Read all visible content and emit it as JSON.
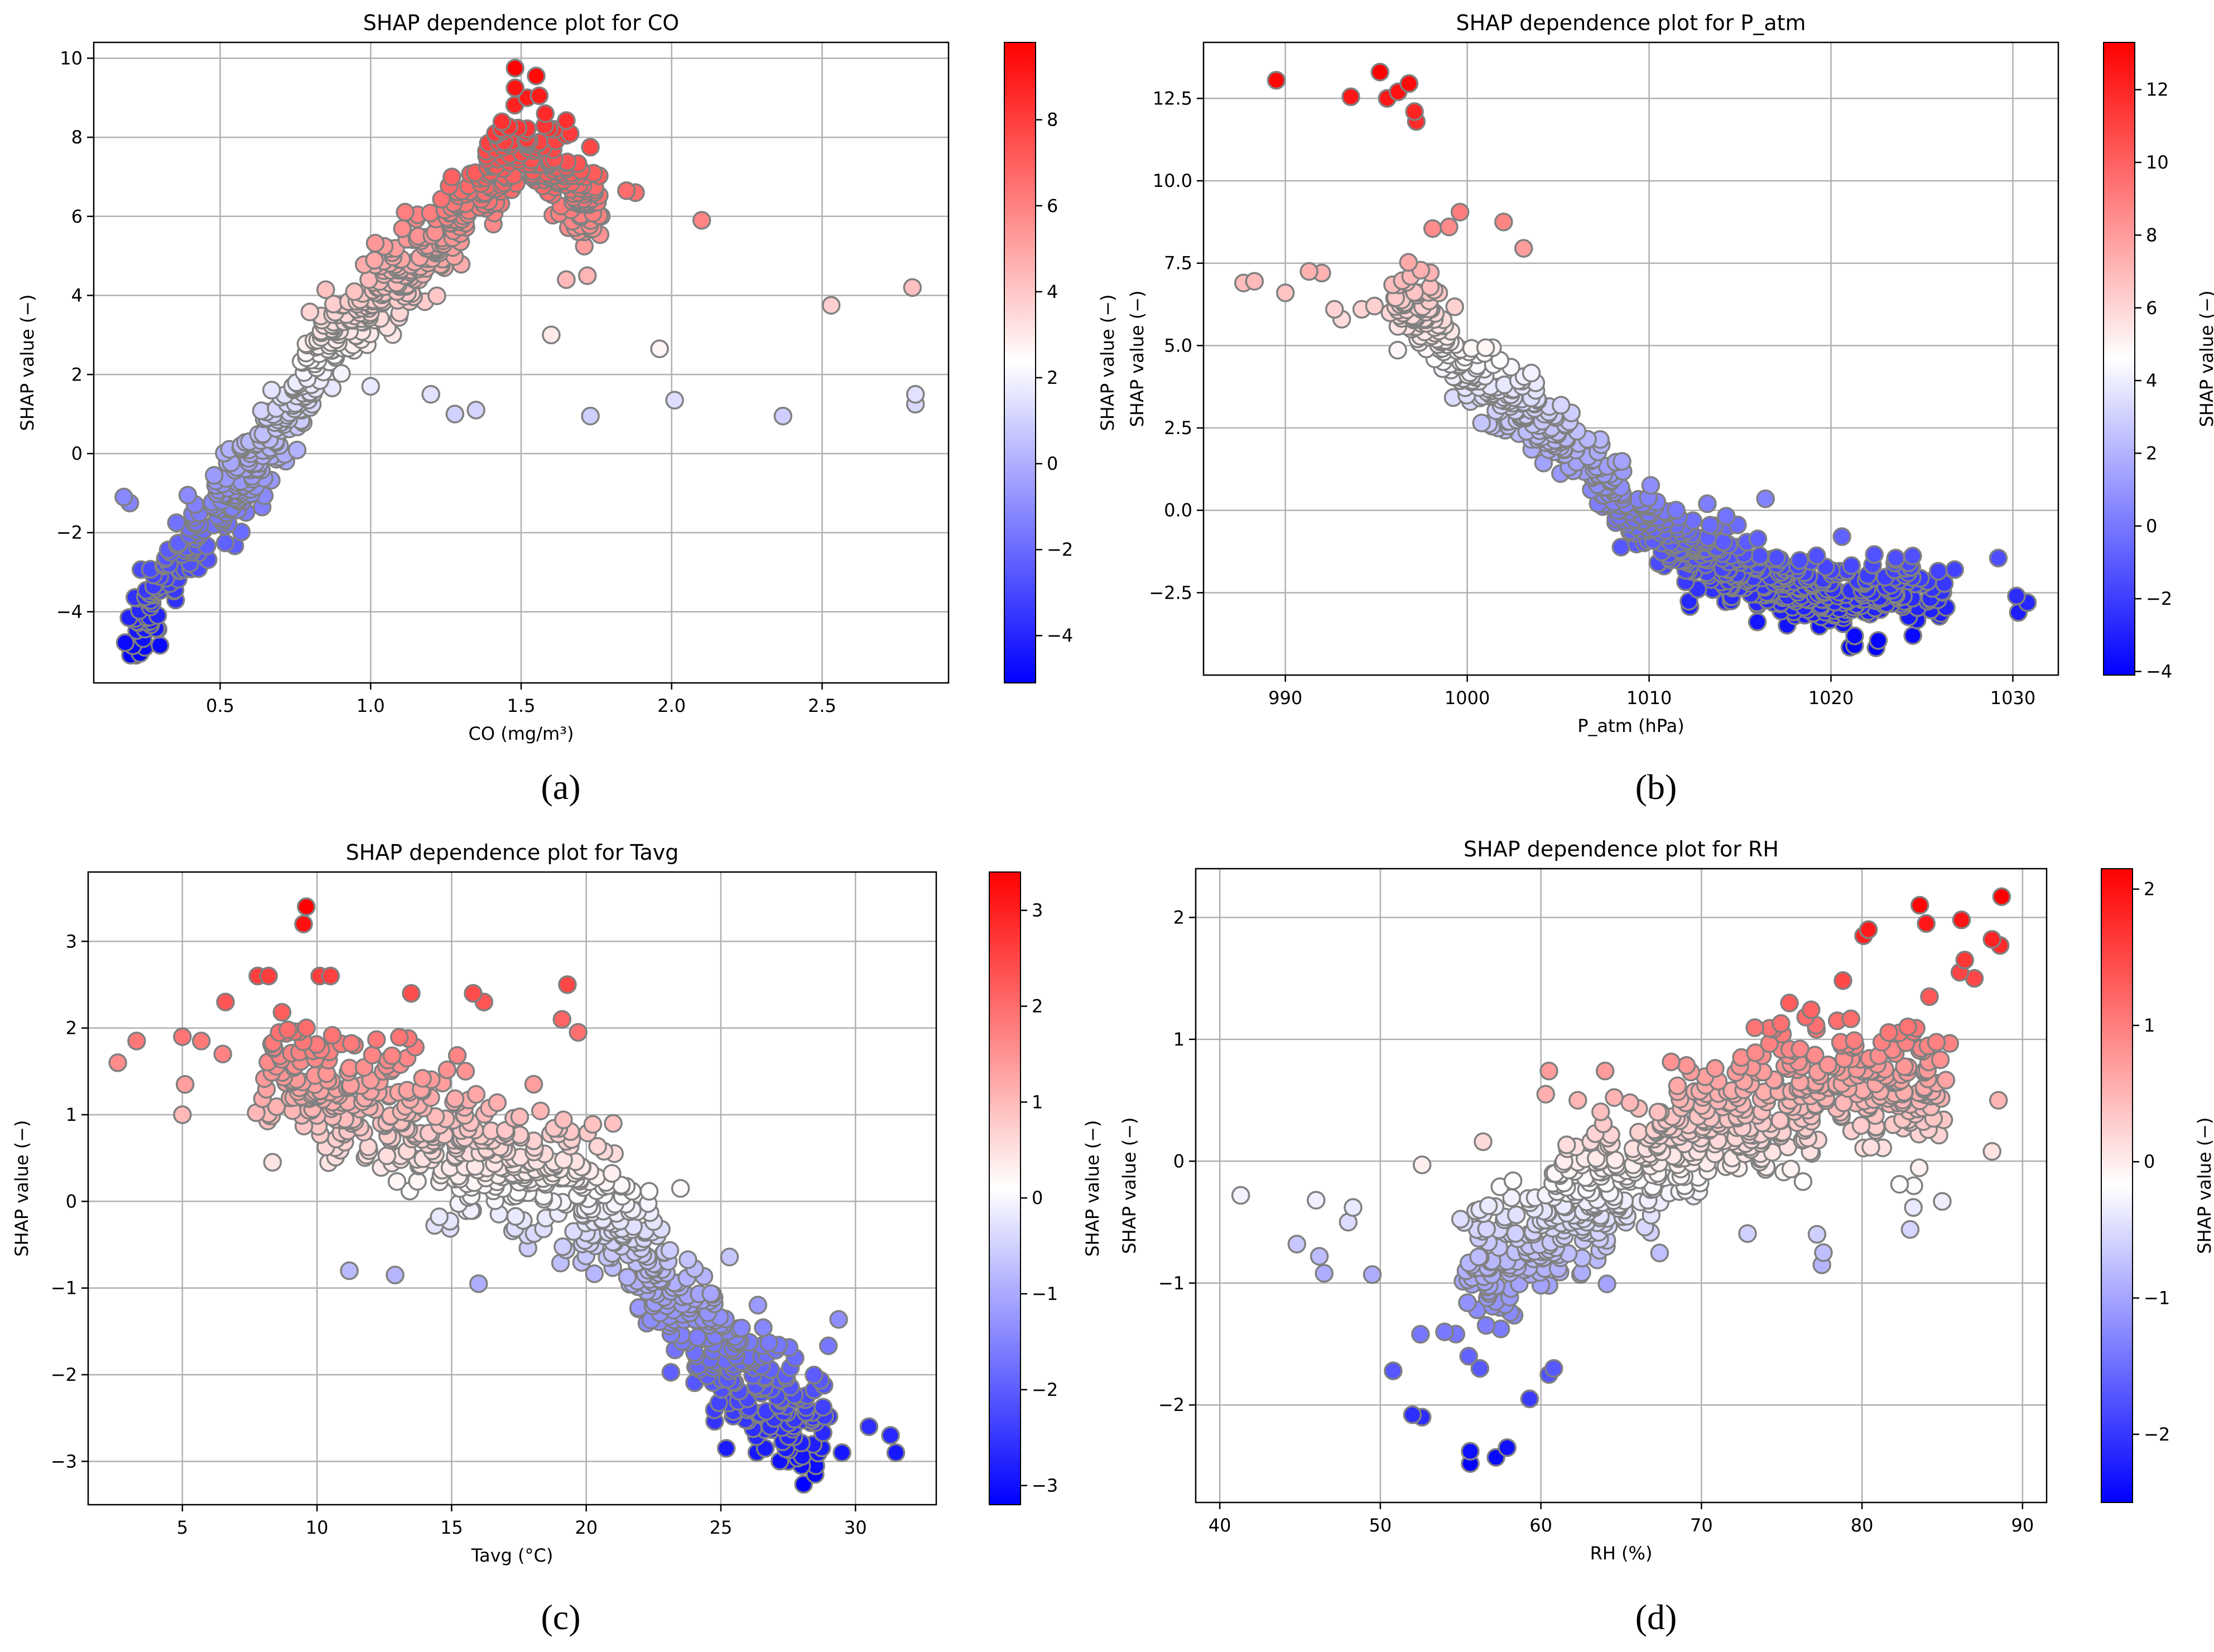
{
  "figure": {
    "panel_labels": [
      "(a)",
      "(b)",
      "(c)",
      "(d)"
    ]
  },
  "colors": {
    "low": "#0000ff",
    "mid": "#ffffff",
    "high": "#ff0000",
    "marker_edge": "#808080",
    "grid": "#b0b0b0"
  },
  "chart_data": [
    {
      "type": "scatter",
      "title": "SHAP dependence plot for CO",
      "xlabel": "CO (mg/m³)",
      "ylabel": "SHAP value (−)",
      "colorbar_label": "SHAP value (−)",
      "xlim": [
        0.08,
        2.92
      ],
      "ylim": [
        -5.8,
        10.4
      ],
      "xticks": [
        0.5,
        1.0,
        1.5,
        2.0,
        2.5
      ],
      "xtick_labels": [
        "0.5",
        "1.0",
        "1.5",
        "2.0",
        "2.5"
      ],
      "yticks": [
        -4,
        -2,
        0,
        2,
        4,
        6,
        8,
        10
      ],
      "ytick_labels": [
        "−4",
        "−2",
        "0",
        "2",
        "4",
        "6",
        "8",
        "10"
      ],
      "color_range": [
        -5.1,
        9.8
      ],
      "colorbar_ticks": [
        -4,
        -2,
        0,
        2,
        4,
        6,
        8
      ],
      "colorbar_tick_labels": [
        "−4",
        "−2",
        "0",
        "2",
        "4",
        "6",
        "8"
      ],
      "grid": true,
      "cluster_points": [
        [
          0.2,
          -4.7
        ],
        [
          0.22,
          -4.2
        ],
        [
          0.25,
          -3.9
        ],
        [
          0.28,
          -3.5
        ],
        [
          0.3,
          -3.1
        ],
        [
          0.33,
          -2.8
        ],
        [
          0.36,
          -2.6
        ],
        [
          0.4,
          -2.3
        ],
        [
          0.43,
          -2.0
        ],
        [
          0.46,
          -1.7
        ],
        [
          0.5,
          -1.3
        ],
        [
          0.54,
          -0.9
        ],
        [
          0.58,
          -0.5
        ],
        [
          0.62,
          -0.1
        ],
        [
          0.66,
          0.3
        ],
        [
          0.7,
          0.7
        ],
        [
          0.75,
          1.3
        ],
        [
          0.8,
          2.0
        ],
        [
          0.86,
          2.8
        ],
        [
          0.92,
          3.4
        ],
        [
          1.0,
          3.9
        ],
        [
          1.08,
          4.3
        ],
        [
          1.16,
          4.9
        ],
        [
          1.24,
          5.5
        ],
        [
          1.32,
          6.2
        ],
        [
          1.4,
          7.0
        ],
        [
          1.46,
          7.5
        ],
        [
          1.52,
          7.9
        ],
        [
          1.6,
          7.2
        ],
        [
          1.68,
          6.6
        ],
        [
          1.76,
          6.0
        ]
      ],
      "cluster_spread": [
        0.05,
        0.55
      ],
      "cluster_count": 680,
      "seed": 11,
      "extra_points": [
        [
          1.48,
          9.75
        ],
        [
          1.55,
          9.55
        ],
        [
          1.48,
          9.25
        ],
        [
          1.52,
          9.0
        ],
        [
          1.56,
          9.05
        ],
        [
          1.58,
          8.6
        ],
        [
          1.61,
          8.2
        ],
        [
          1.65,
          8.05
        ],
        [
          1.73,
          7.75
        ],
        [
          1.85,
          6.65
        ],
        [
          1.88,
          6.6
        ],
        [
          2.1,
          5.9
        ],
        [
          2.53,
          3.75
        ],
        [
          2.8,
          4.2
        ],
        [
          1.96,
          2.65
        ],
        [
          2.01,
          1.35
        ],
        [
          2.37,
          0.95
        ],
        [
          2.81,
          1.5
        ],
        [
          2.81,
          1.25
        ],
        [
          1.73,
          0.95
        ],
        [
          1.28,
          1.0
        ],
        [
          1.35,
          1.1
        ],
        [
          0.18,
          -1.1
        ],
        [
          0.2,
          -1.25
        ],
        [
          0.22,
          -5.1
        ],
        [
          0.25,
          -4.9
        ],
        [
          0.3,
          -4.85
        ],
        [
          1.72,
          4.5
        ],
        [
          1.65,
          4.4
        ],
        [
          1.0,
          1.7
        ],
        [
          1.2,
          1.5
        ],
        [
          1.6,
          3.0
        ]
      ]
    },
    {
      "type": "scatter",
      "title": "SHAP dependence plot for P_atm",
      "xlabel": "P_atm (hPa)",
      "ylabel": "SHAP value (−)",
      "colorbar_label": "SHAP value (−)",
      "xlim": [
        985.5,
        1032.5
      ],
      "ylim": [
        -5.0,
        14.2
      ],
      "xticks": [
        990,
        1000,
        1010,
        1020,
        1030
      ],
      "xtick_labels": [
        "990",
        "1000",
        "1010",
        "1020",
        "1030"
      ],
      "yticks": [
        -2.5,
        0.0,
        2.5,
        5.0,
        7.5,
        10.0,
        12.5
      ],
      "ytick_labels": [
        "−2.5",
        "0.0",
        "2.5",
        "5.0",
        "7.5",
        "10.0",
        "12.5"
      ],
      "color_range": [
        -4.1,
        13.3
      ],
      "colorbar_ticks": [
        -4,
        -2,
        0,
        2,
        4,
        6,
        8,
        10,
        12
      ],
      "colorbar_tick_labels": [
        "−4",
        "−2",
        "0",
        "2",
        "4",
        "6",
        "8",
        "10",
        "12"
      ],
      "grid": true,
      "cluster_points": [
        [
          996,
          6.3
        ],
        [
          998,
          5.8
        ],
        [
          999,
          5.0
        ],
        [
          1000,
          4.2
        ],
        [
          1001,
          3.8
        ],
        [
          1002,
          3.3
        ],
        [
          1003,
          3.0
        ],
        [
          1004,
          2.6
        ],
        [
          1005,
          2.2
        ],
        [
          1006,
          1.8
        ],
        [
          1007,
          1.2
        ],
        [
          1008,
          0.6
        ],
        [
          1009,
          0.1
        ],
        [
          1010,
          -0.4
        ],
        [
          1011,
          -0.8
        ],
        [
          1012,
          -1.1
        ],
        [
          1013,
          -1.4
        ],
        [
          1014,
          -1.7
        ],
        [
          1015,
          -1.9
        ],
        [
          1016,
          -2.1
        ],
        [
          1017,
          -2.3
        ],
        [
          1018,
          -2.4
        ],
        [
          1019,
          -2.5
        ],
        [
          1020,
          -2.6
        ],
        [
          1021,
          -2.7
        ],
        [
          1022,
          -2.7
        ],
        [
          1023,
          -2.7
        ],
        [
          1024,
          -2.6
        ],
        [
          1025,
          -2.6
        ],
        [
          1026,
          -2.6
        ]
      ],
      "cluster_spread": [
        1.0,
        0.55
      ],
      "cluster_count": 700,
      "seed": 23,
      "extra_points": [
        [
          989.5,
          13.05
        ],
        [
          995.2,
          13.3
        ],
        [
          993.6,
          12.55
        ],
        [
          995.6,
          12.5
        ],
        [
          996.2,
          12.7
        ],
        [
          996.8,
          12.95
        ],
        [
          997.1,
          12.1
        ],
        [
          997.2,
          11.8
        ],
        [
          987.7,
          6.9
        ],
        [
          988.3,
          6.95
        ],
        [
          990.0,
          6.6
        ],
        [
          991.3,
          7.25
        ],
        [
          992.0,
          7.2
        ],
        [
          992.7,
          6.1
        ],
        [
          993.1,
          5.8
        ],
        [
          994.2,
          6.1
        ],
        [
          994.9,
          6.2
        ],
        [
          998.1,
          8.55
        ],
        [
          999.0,
          8.6
        ],
        [
          999.6,
          9.05
        ],
        [
          1002.0,
          8.75
        ],
        [
          1003.1,
          7.95
        ],
        [
          1026.8,
          -1.8
        ],
        [
          1029.2,
          -1.45
        ],
        [
          1030.2,
          -2.6
        ],
        [
          1030.8,
          -2.8
        ],
        [
          1030.3,
          -3.1
        ],
        [
          1021.3,
          -4.1
        ],
        [
          1022.6,
          -3.95
        ],
        [
          1024.5,
          -3.8
        ],
        [
          1016.4,
          0.35
        ],
        [
          1013.2,
          0.2
        ],
        [
          1020.6,
          -0.8
        ]
      ]
    },
    {
      "type": "scatter",
      "title": "SHAP dependence plot for Tavg",
      "xlabel": "Tavg (°C)",
      "ylabel": "SHAP value (−)",
      "colorbar_label": "SHAP value (−)",
      "xlim": [
        1.5,
        33.0
      ],
      "ylim": [
        -3.5,
        3.8
      ],
      "xticks": [
        5,
        10,
        15,
        20,
        25,
        30
      ],
      "xtick_labels": [
        "5",
        "10",
        "15",
        "20",
        "25",
        "30"
      ],
      "yticks": [
        -3,
        -2,
        -1,
        0,
        1,
        2,
        3
      ],
      "ytick_labels": [
        "−3",
        "−2",
        "−1",
        "0",
        "1",
        "2",
        "3"
      ],
      "color_range": [
        -3.2,
        3.4
      ],
      "colorbar_ticks": [
        -3,
        -2,
        -1,
        0,
        1,
        2,
        3
      ],
      "colorbar_tick_labels": [
        "−3",
        "−2",
        "−1",
        "0",
        "1",
        "2",
        "3"
      ],
      "grid": true,
      "cluster_points": [
        [
          8,
          1.5
        ],
        [
          9,
          1.4
        ],
        [
          10,
          1.35
        ],
        [
          11,
          1.2
        ],
        [
          12,
          1.1
        ],
        [
          13,
          1.0
        ],
        [
          14,
          0.85
        ],
        [
          15,
          0.7
        ],
        [
          16,
          0.55
        ],
        [
          17,
          0.45
        ],
        [
          18,
          0.35
        ],
        [
          19,
          0.25
        ],
        [
          20,
          0.05
        ],
        [
          21,
          -0.3
        ],
        [
          22,
          -0.7
        ],
        [
          23,
          -1.1
        ],
        [
          24,
          -1.4
        ],
        [
          25,
          -1.7
        ],
        [
          26,
          -2.0
        ],
        [
          27,
          -2.3
        ],
        [
          28,
          -2.5
        ],
        [
          29,
          -2.6
        ]
      ],
      "cluster_spread": [
        1.0,
        0.38
      ],
      "cluster_count": 720,
      "seed": 37,
      "extra_points": [
        [
          2.6,
          1.6
        ],
        [
          3.3,
          1.85
        ],
        [
          5.0,
          1.9
        ],
        [
          5.7,
          1.85
        ],
        [
          5.1,
          1.35
        ],
        [
          5.0,
          1.0
        ],
        [
          6.5,
          1.7
        ],
        [
          6.6,
          2.3
        ],
        [
          7.8,
          2.6
        ],
        [
          8.2,
          2.6
        ],
        [
          9.6,
          3.4
        ],
        [
          9.5,
          3.2
        ],
        [
          10.1,
          2.6
        ],
        [
          10.5,
          2.6
        ],
        [
          13.5,
          2.4
        ],
        [
          15.8,
          2.4
        ],
        [
          16.2,
          2.3
        ],
        [
          19.3,
          2.5
        ],
        [
          19.1,
          2.1
        ],
        [
          19.7,
          1.95
        ],
        [
          21.0,
          0.9
        ],
        [
          23.5,
          0.15
        ],
        [
          27.5,
          -3.0
        ],
        [
          28.5,
          -3.15
        ],
        [
          28.0,
          -3.05
        ],
        [
          29.5,
          -2.9
        ],
        [
          30.5,
          -2.6
        ],
        [
          31.3,
          -2.7
        ],
        [
          31.5,
          -2.9
        ],
        [
          25.2,
          -2.85
        ],
        [
          11.2,
          -0.8
        ],
        [
          12.9,
          -0.85
        ],
        [
          16.0,
          -0.95
        ]
      ]
    },
    {
      "type": "scatter",
      "title": "SHAP dependence plot for RH",
      "xlabel": "RH (%)",
      "ylabel": "SHAP value (−)",
      "colorbar_label": "SHAP value (−)",
      "xlim": [
        38.5,
        91.5
      ],
      "ylim": [
        -2.8,
        2.4
      ],
      "xticks": [
        40,
        50,
        60,
        70,
        80,
        90
      ],
      "xtick_labels": [
        "40",
        "50",
        "60",
        "70",
        "80",
        "90"
      ],
      "yticks": [
        -2,
        -1,
        0,
        1,
        2
      ],
      "ytick_labels": [
        "−2",
        "−1",
        "0",
        "1",
        "2"
      ],
      "color_range": [
        -2.5,
        2.15
      ],
      "colorbar_ticks": [
        -2,
        -1,
        0,
        1,
        2
      ],
      "colorbar_tick_labels": [
        "−2",
        "−1",
        "0",
        "1",
        "2"
      ],
      "grid": true,
      "cluster_points": [
        [
          55,
          -0.85
        ],
        [
          57,
          -0.8
        ],
        [
          59,
          -0.7
        ],
        [
          61,
          -0.5
        ],
        [
          63,
          -0.3
        ],
        [
          65,
          -0.15
        ],
        [
          67,
          0.0
        ],
        [
          69,
          0.15
        ],
        [
          71,
          0.3
        ],
        [
          73,
          0.4
        ],
        [
          75,
          0.5
        ],
        [
          77,
          0.55
        ],
        [
          79,
          0.6
        ],
        [
          81,
          0.6
        ],
        [
          83,
          0.55
        ],
        [
          85,
          0.5
        ]
      ],
      "cluster_spread": [
        1.5,
        0.3
      ],
      "cluster_count": 640,
      "seed": 53,
      "extra_points": [
        [
          41.3,
          -0.28
        ],
        [
          44.8,
          -0.68
        ],
        [
          46.0,
          -0.32
        ],
        [
          46.2,
          -0.78
        ],
        [
          46.5,
          -0.92
        ],
        [
          48.0,
          -0.5
        ],
        [
          48.3,
          -0.38
        ],
        [
          49.5,
          -0.93
        ],
        [
          50.8,
          -1.72
        ],
        [
          52.0,
          -2.08
        ],
        [
          52.6,
          -2.1
        ],
        [
          55.6,
          -2.38
        ],
        [
          55.6,
          -2.48
        ],
        [
          57.2,
          -2.43
        ],
        [
          57.9,
          -2.35
        ],
        [
          59.3,
          -1.95
        ],
        [
          60.5,
          -1.75
        ],
        [
          60.8,
          -1.7
        ],
        [
          52.5,
          -1.42
        ],
        [
          54.0,
          -1.4
        ],
        [
          55.5,
          -1.6
        ],
        [
          56.2,
          -1.7
        ],
        [
          52.6,
          -0.03
        ],
        [
          56.4,
          0.16
        ],
        [
          60.3,
          0.55
        ],
        [
          60.5,
          0.74
        ],
        [
          64.0,
          0.74
        ],
        [
          62.3,
          0.5
        ],
        [
          80.1,
          1.85
        ],
        [
          80.4,
          1.9
        ],
        [
          83.6,
          2.1
        ],
        [
          84.0,
          1.95
        ],
        [
          86.2,
          1.98
        ],
        [
          88.1,
          1.82
        ],
        [
          88.6,
          1.77
        ],
        [
          88.7,
          2.17
        ],
        [
          86.1,
          1.55
        ],
        [
          86.4,
          1.65
        ],
        [
          84.2,
          1.35
        ],
        [
          87.0,
          1.5
        ],
        [
          88.1,
          0.08
        ],
        [
          85.0,
          -0.33
        ],
        [
          83.0,
          -0.56
        ],
        [
          83.2,
          -0.38
        ],
        [
          77.5,
          -0.85
        ],
        [
          77.6,
          -0.75
        ],
        [
          77.2,
          -0.6
        ],
        [
          88.5,
          0.5
        ]
      ]
    }
  ]
}
